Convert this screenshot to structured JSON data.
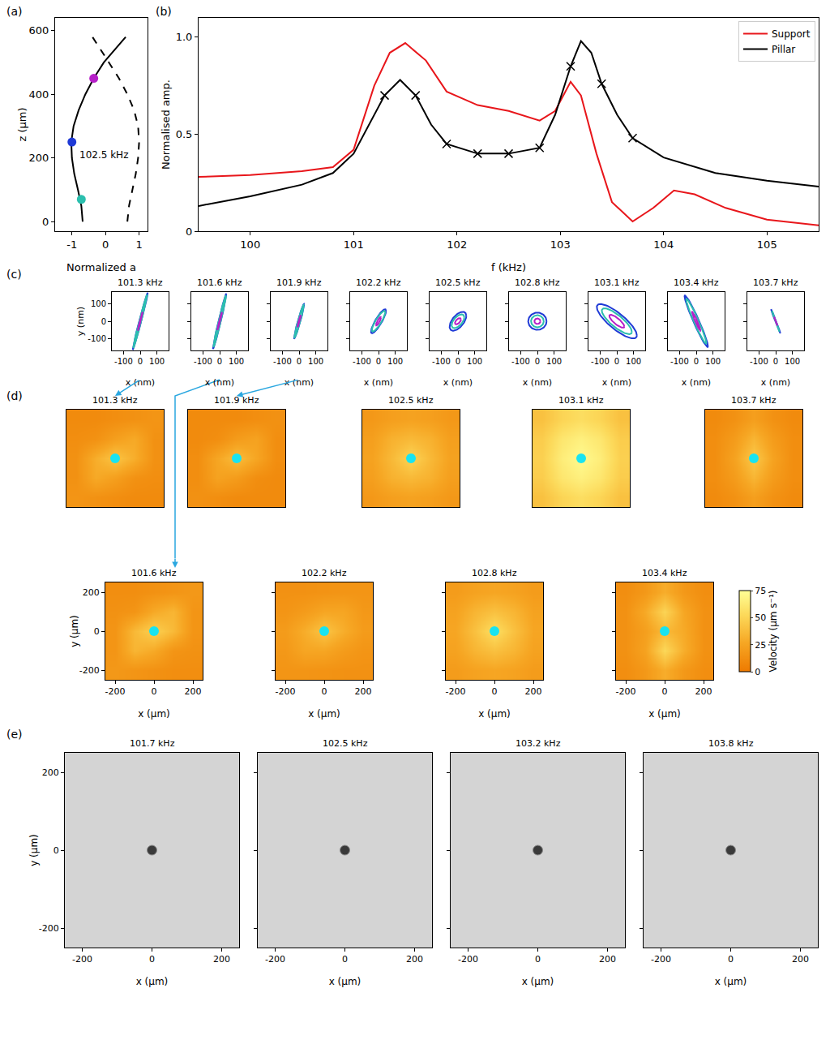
{
  "chart_data": [
    {
      "label": "(a)",
      "type": "line",
      "x_label": "Normalized a",
      "y_label": "z (μm)",
      "xlim": [
        -1.5,
        1.25
      ],
      "ylim": [
        -30,
        640
      ],
      "xticks": [
        -1,
        0,
        1
      ],
      "yticks": [
        0,
        200,
        400,
        600
      ],
      "series": [
        {
          "line_style": "solid",
          "color": "#000000",
          "x": [
            -0.68,
            -0.72,
            -0.82,
            -0.93,
            -1.0,
            -1.02,
            -0.95,
            -0.8,
            -0.6,
            -0.35,
            -0.05,
            0.35,
            0.6
          ],
          "values": [
            0,
            50,
            100,
            150,
            200,
            250,
            300,
            350,
            400,
            450,
            500,
            550,
            580
          ]
        },
        {
          "line_style": "dashed",
          "color": "#000000",
          "x": [
            0.65,
            0.7,
            0.8,
            0.9,
            0.97,
            1.0,
            0.97,
            0.85,
            0.65,
            0.4,
            0.1,
            -0.2,
            -0.45
          ],
          "values": [
            0,
            50,
            100,
            150,
            200,
            250,
            300,
            350,
            400,
            450,
            500,
            550,
            590
          ]
        },
        {
          "type": "scatter",
          "colors": [
            "#2bbfae",
            "#1f3ad6",
            "#b620c8"
          ],
          "x": [
            -0.72,
            -1.0,
            -0.35
          ],
          "values": [
            70,
            250,
            450
          ]
        }
      ],
      "annotations": [
        {
          "text": "102.5 kHz",
          "x": -0.82,
          "y": 210
        }
      ]
    },
    {
      "label": "(b)",
      "type": "line",
      "x_label": "f (kHz)",
      "y_label": "Normalised amp.",
      "xlim": [
        99.5,
        105.5
      ],
      "ylim": [
        0,
        1.1
      ],
      "xticks": [
        100,
        101,
        102,
        103,
        104,
        105
      ],
      "yticks": [
        0,
        0.5,
        {
          "value": 1,
          "label": "1.0"
        }
      ],
      "legend": "upper right",
      "series": [
        {
          "name": "Support",
          "color": "#e8161b",
          "x": [
            99.5,
            100,
            100.5,
            100.8,
            101.0,
            101.2,
            101.35,
            101.5,
            101.7,
            101.9,
            102.2,
            102.5,
            102.8,
            102.95,
            103.1,
            103.2,
            103.35,
            103.5,
            103.7,
            103.9,
            104.1,
            104.3,
            104.6,
            105,
            105.5
          ],
          "values": [
            0.28,
            0.29,
            0.31,
            0.33,
            0.42,
            0.75,
            0.92,
            0.97,
            0.88,
            0.72,
            0.65,
            0.62,
            0.57,
            0.62,
            0.77,
            0.7,
            0.4,
            0.15,
            0.05,
            0.12,
            0.21,
            0.19,
            0.12,
            0.06,
            0.03
          ]
        },
        {
          "name": "Pillar",
          "color": "#000000",
          "marker": "x",
          "x": [
            99.5,
            100,
            100.5,
            100.8,
            101.0,
            101.2,
            101.3,
            101.45,
            101.6,
            101.75,
            101.9,
            102.2,
            102.5,
            102.8,
            102.95,
            103.1,
            103.2,
            103.3,
            103.4,
            103.55,
            103.7,
            104,
            104.5,
            105,
            105.5
          ],
          "values": [
            0.13,
            0.18,
            0.24,
            0.3,
            0.4,
            0.6,
            0.7,
            0.78,
            0.7,
            0.55,
            0.45,
            0.4,
            0.4,
            0.43,
            0.6,
            0.85,
            0.98,
            0.92,
            0.76,
            0.6,
            0.48,
            0.38,
            0.3,
            0.26,
            0.23
          ],
          "marked_x": [
            101.3,
            101.6,
            101.9,
            102.2,
            102.5,
            102.8,
            103.1,
            103.4,
            103.7
          ],
          "marked_values": [
            0.7,
            0.7,
            0.45,
            0.4,
            0.4,
            0.43,
            0.85,
            0.76,
            0.48
          ]
        }
      ]
    },
    {
      "label": "(c)",
      "type": "ellipse",
      "x_label": "x (nm)",
      "y_label": "y (nm)",
      "xlim": [
        -170,
        170
      ],
      "ylim": [
        -170,
        170
      ],
      "xticks": [
        -100,
        0,
        100
      ],
      "yticks": [
        -100,
        0,
        100
      ],
      "colors": [
        "#1f3ad6",
        "#2bbfae",
        "#b620c8"
      ],
      "panels": [
        {
          "title": "101.3 kHz",
          "x_amp": [
            45,
            42,
            15
          ],
          "y_amp": [
            165,
            155,
            55
          ],
          "phase_deg": [
            8,
            8,
            8
          ]
        },
        {
          "title": "101.6 kHz",
          "x_amp": [
            40,
            38,
            14
          ],
          "y_amp": [
            160,
            150,
            52
          ],
          "phase_deg": [
            10,
            10,
            10
          ]
        },
        {
          "title": "101.9 kHz",
          "x_amp": [
            30,
            28,
            10
          ],
          "y_amp": [
            100,
            95,
            35
          ],
          "phase_deg": [
            15,
            15,
            15
          ]
        },
        {
          "title": "102.2 kHz",
          "x_amp": [
            45,
            40,
            15
          ],
          "y_amp": [
            70,
            60,
            25
          ],
          "phase_deg": [
            30,
            30,
            30
          ]
        },
        {
          "title": "102.5 kHz",
          "x_amp": [
            50,
            38,
            18
          ],
          "y_amp": [
            55,
            40,
            18
          ],
          "phase_deg": [
            55,
            55,
            55
          ]
        },
        {
          "title": "102.8 kHz",
          "x_amp": [
            55,
            38,
            18
          ],
          "y_amp": [
            50,
            35,
            16
          ],
          "phase_deg": [
            90,
            90,
            90
          ]
        },
        {
          "title": "103.1 kHz",
          "x_amp": [
            120,
            90,
            45
          ],
          "y_amp": [
            100,
            75,
            38
          ],
          "phase_deg": [
            145,
            145,
            145
          ]
        },
        {
          "title": "103.4 kHz",
          "x_amp": [
            70,
            60,
            25
          ],
          "y_amp": [
            150,
            130,
            55
          ],
          "phase_deg": [
            165,
            165,
            165
          ]
        },
        {
          "title": "103.7 kHz",
          "x_amp": [
            28,
            22,
            10
          ],
          "y_amp": [
            70,
            60,
            25
          ],
          "phase_deg": [
            175,
            175,
            175
          ]
        }
      ]
    },
    {
      "label": "(d)",
      "type": "heatmap",
      "x_label": "x (μm)",
      "y_label": "y (μm)",
      "xlim": [
        -250,
        250
      ],
      "ylim": [
        -250,
        250
      ],
      "xticks": [
        -200,
        0,
        200
      ],
      "yticks": [
        -200,
        0,
        200
      ],
      "grid_x": [
        -200,
        -100,
        0,
        100,
        200
      ],
      "grid_y": [
        -200,
        -100,
        0,
        100,
        200
      ],
      "colorbar": {
        "title": "Velocity (μm s⁻¹)",
        "range": [
          0,
          75
        ],
        "ticks": [
          0,
          25,
          50,
          75
        ]
      },
      "pillar": {
        "x": 0,
        "y": 0,
        "color": "#19e3f0"
      },
      "panels": [
        {
          "title": "101.3 kHz",
          "speed": [
            [
              16,
              14,
              12,
              10,
              10
            ],
            [
              14,
              28,
              22,
              14,
              12
            ],
            [
              14,
              30,
              42,
              30,
              14
            ],
            [
              12,
              14,
              22,
              28,
              14
            ],
            [
              10,
              10,
              12,
              14,
              16
            ]
          ]
        },
        {
          "title": "101.6 kHz",
          "speed": [
            [
              18,
              16,
              14,
              12,
              12
            ],
            [
              16,
              34,
              28,
              16,
              14
            ],
            [
              16,
              36,
              48,
              36,
              16
            ],
            [
              14,
              16,
              28,
              34,
              16
            ],
            [
              12,
              12,
              14,
              16,
              18
            ]
          ]
        },
        {
          "title": "101.9 kHz",
          "speed": [
            [
              14,
              12,
              10,
              10,
              10
            ],
            [
              12,
              24,
              20,
              12,
              10
            ],
            [
              12,
              26,
              38,
              26,
              12
            ],
            [
              10,
              12,
              20,
              24,
              12
            ],
            [
              10,
              10,
              10,
              12,
              14
            ]
          ]
        },
        {
          "title": "102.2 kHz",
          "speed": [
            [
              16,
              16,
              15,
              14,
              14
            ],
            [
              18,
              26,
              26,
              20,
              16
            ],
            [
              20,
              30,
              42,
              30,
              20
            ],
            [
              16,
              20,
              26,
              26,
              18
            ],
            [
              14,
              14,
              15,
              16,
              16
            ]
          ]
        },
        {
          "title": "102.5 kHz",
          "speed": [
            [
              18,
              22,
              24,
              22,
              18
            ],
            [
              22,
              32,
              36,
              32,
              22
            ],
            [
              24,
              36,
              50,
              36,
              24
            ],
            [
              22,
              32,
              36,
              32,
              22
            ],
            [
              18,
              22,
              24,
              22,
              18
            ]
          ]
        },
        {
          "title": "102.8 kHz",
          "speed": [
            [
              20,
              24,
              26,
              24,
              20
            ],
            [
              24,
              34,
              40,
              34,
              24
            ],
            [
              26,
              40,
              56,
              40,
              26
            ],
            [
              24,
              34,
              40,
              34,
              24
            ],
            [
              20,
              24,
              26,
              24,
              20
            ]
          ]
        },
        {
          "title": "103.1 kHz",
          "speed": [
            [
              40,
              50,
              55,
              50,
              40
            ],
            [
              46,
              60,
              66,
              60,
              46
            ],
            [
              48,
              64,
              72,
              64,
              48
            ],
            [
              46,
              60,
              66,
              60,
              46
            ],
            [
              40,
              50,
              55,
              50,
              40
            ]
          ]
        },
        {
          "title": "103.4 kHz",
          "speed": [
            [
              12,
              18,
              30,
              18,
              12
            ],
            [
              14,
              24,
              52,
              30,
              14
            ],
            [
              14,
              22,
              36,
              28,
              14
            ],
            [
              14,
              28,
              50,
              26,
              14
            ],
            [
              12,
              18,
              30,
              18,
              12
            ]
          ]
        },
        {
          "title": "103.7 kHz",
          "speed": [
            [
              10,
              14,
              22,
              14,
              10
            ],
            [
              12,
              20,
              34,
              20,
              12
            ],
            [
              12,
              24,
              44,
              24,
              12
            ],
            [
              12,
              20,
              34,
              20,
              12
            ],
            [
              10,
              14,
              22,
              14,
              10
            ]
          ]
        }
      ]
    },
    {
      "label": "(e)",
      "type": "image",
      "x_label": "x (μm)",
      "y_label": "y (μm)",
      "xlim": [
        -250,
        250
      ],
      "ylim": [
        -250,
        250
      ],
      "xticks": [
        -200,
        0,
        200
      ],
      "yticks": [
        -200,
        0,
        200
      ],
      "pillar": {
        "x": 0,
        "y": 0,
        "color": "#3a3a3a"
      },
      "panels": [
        {
          "title": "101.7 kHz"
        },
        {
          "title": "102.5 kHz"
        },
        {
          "title": "103.2 kHz"
        },
        {
          "title": "103.8 kHz"
        }
      ]
    }
  ]
}
